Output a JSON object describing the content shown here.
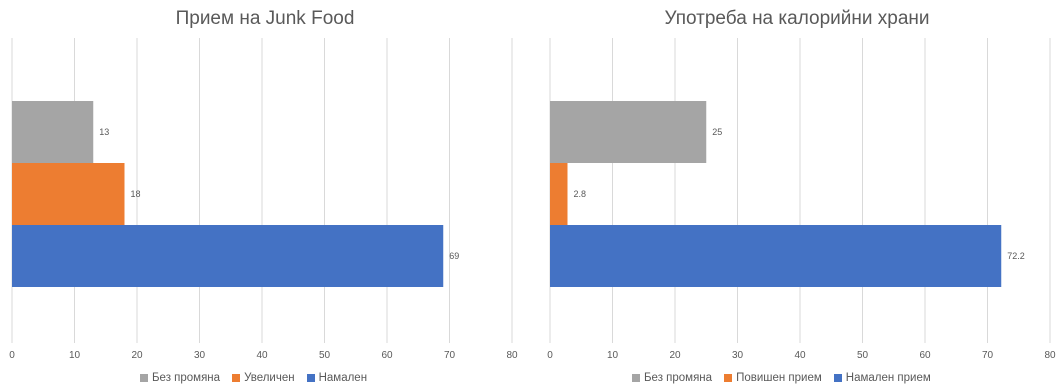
{
  "chart_data": [
    {
      "type": "bar",
      "orientation": "horizontal",
      "title": "Прием на Junk Food",
      "categories": [
        "Без промяна",
        "Увеличен",
        "Намален"
      ],
      "values": [
        13,
        18,
        69
      ],
      "data_labels": [
        "13",
        "18",
        "69"
      ],
      "colors": [
        "#a5a5a5",
        "#ed7d31",
        "#4472c4"
      ],
      "xlim": [
        0,
        80
      ],
      "xticks": [
        "0",
        "10",
        "20",
        "30",
        "40",
        "50",
        "60",
        "70",
        "80"
      ],
      "grid": true,
      "legend": "bottom"
    },
    {
      "type": "bar",
      "orientation": "horizontal",
      "title": "Употреба на калорийни храни",
      "categories": [
        "Без промяна",
        "Повишен прием",
        "Намален прием"
      ],
      "values": [
        25,
        2.8,
        72.2
      ],
      "data_labels": [
        "25",
        "2.8",
        "72.2"
      ],
      "colors": [
        "#a5a5a5",
        "#ed7d31",
        "#4472c4"
      ],
      "xlim": [
        0,
        80
      ],
      "xticks": [
        "0",
        "10",
        "20",
        "30",
        "40",
        "50",
        "60",
        "70",
        "80"
      ],
      "grid": true,
      "legend": "bottom"
    }
  ]
}
